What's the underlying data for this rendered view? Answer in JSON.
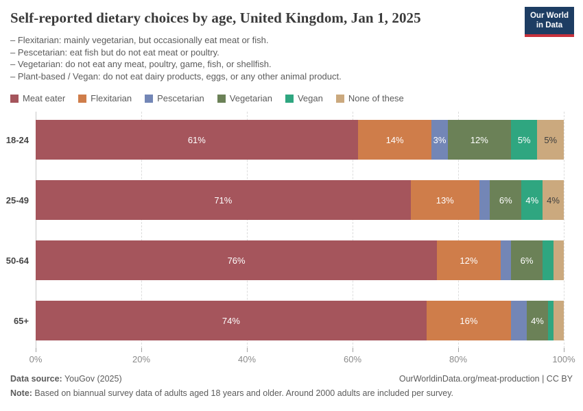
{
  "header": {
    "title": "Self-reported dietary choices by age, United Kingdom, Jan 1, 2025",
    "subtitle_lines": [
      "– Flexitarian: mainly vegetarian, but occasionally eat meat or fish.",
      "– Pescetarian: eat fish but do not eat meat or poultry.",
      "– Vegetarian: do not eat any meat, poultry, game, fish, or shellfish.",
      "– Plant-based / Vegan: do not eat dairy products, eggs, or any other animal product."
    ],
    "logo": {
      "line1": "Our World",
      "line2": "in Data",
      "bg": "#1d3d63",
      "accent": "#c8323c"
    }
  },
  "legend": [
    {
      "label": "Meat eater",
      "color": "#a5555c",
      "label_color": "#ffffff"
    },
    {
      "label": "Flexitarian",
      "color": "#cf7d4a",
      "label_color": "#ffffff"
    },
    {
      "label": "Pescetarian",
      "color": "#7386b6",
      "label_color": "#ffffff"
    },
    {
      "label": "Vegetarian",
      "color": "#6b8157",
      "label_color": "#ffffff"
    },
    {
      "label": "Vegan",
      "color": "#2fa680",
      "label_color": "#ffffff"
    },
    {
      "label": "None of these",
      "color": "#cba97e",
      "label_color": "#3d3d3d"
    }
  ],
  "chart_data": {
    "type": "bar",
    "stacked": true,
    "orientation": "horizontal",
    "unit": "%",
    "title": "Self-reported dietary choices by age, United Kingdom, Jan 1, 2025",
    "categories": [
      "18-24",
      "25-49",
      "50-64",
      "65+"
    ],
    "series": [
      {
        "name": "Meat eater",
        "values": [
          61,
          71,
          76,
          74
        ]
      },
      {
        "name": "Flexitarian",
        "values": [
          14,
          13,
          12,
          16
        ]
      },
      {
        "name": "Pescetarian",
        "values": [
          3,
          2,
          2,
          3
        ]
      },
      {
        "name": "Vegetarian",
        "values": [
          12,
          6,
          6,
          4
        ]
      },
      {
        "name": "Vegan",
        "values": [
          5,
          4,
          2,
          1
        ]
      },
      {
        "name": "None of these",
        "values": [
          5,
          4,
          2,
          2
        ]
      }
    ],
    "segment_labels": [
      [
        "61%",
        "14%",
        "3%",
        "12%",
        "5%",
        "5%"
      ],
      [
        "71%",
        "13%",
        null,
        "6%",
        "4%",
        "4%"
      ],
      [
        "76%",
        "12%",
        null,
        "6%",
        null,
        null
      ],
      [
        "74%",
        "16%",
        null,
        "4%",
        null,
        null
      ]
    ],
    "x_ticks": [
      "0%",
      "20%",
      "40%",
      "60%",
      "80%",
      "100%"
    ],
    "x_tick_values": [
      0,
      20,
      40,
      60,
      80,
      100
    ],
    "xlim": [
      0,
      100
    ],
    "grid": "dashed-vertical",
    "legend_position": "top"
  },
  "footer": {
    "source_label": "Data source:",
    "source_value": " YouGov (2025)",
    "citation": "OurWorldinData.org/meat-production | CC BY",
    "note_label": "Note:",
    "note_value": " Based on biannual survey data of adults aged 18 years and older. Around 2000 adults are included per survey."
  }
}
